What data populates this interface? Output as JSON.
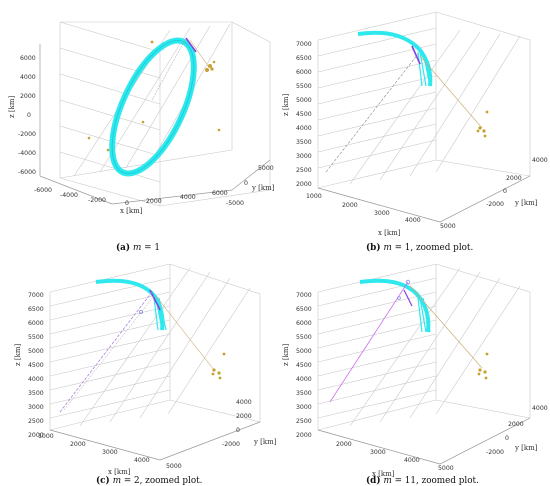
{
  "figure": {
    "panels": [
      {
        "caption_tag": "(a)",
        "caption_var": "m",
        "caption_rest": " = 1",
        "z_ticks": [
          "6000",
          "4000",
          "2000",
          "0",
          "-2000",
          "-4000",
          "-6000"
        ],
        "x_ticks": [
          "-6000",
          "-4000",
          "-2000",
          "0",
          "2000",
          "4000",
          "6000"
        ],
        "y_ticks": [
          "5000",
          "0",
          "-5000"
        ],
        "xlabel": "x [km]",
        "ylabel": "y [km]",
        "zlabel": "z [km]"
      },
      {
        "caption_tag": "(b)",
        "caption_var": "m",
        "caption_rest": " = 1, zoomed plot.",
        "z_ticks": [
          "7000",
          "6500",
          "6000",
          "5500",
          "5000",
          "4500",
          "4000",
          "3500",
          "3000",
          "2500",
          "2000"
        ],
        "x_ticks": [
          "1000",
          "2000",
          "3000",
          "4000",
          "5000"
        ],
        "y_ticks": [
          "4000",
          "2000",
          "0",
          "-2000"
        ],
        "xlabel": "x [km]",
        "ylabel": "y [km]",
        "zlabel": "z [km]"
      },
      {
        "caption_tag": "(c)",
        "caption_var": "m",
        "caption_rest": " = 2, zoomed plot.",
        "z_ticks": [
          "7000",
          "6500",
          "6000",
          "5500",
          "5000",
          "4500",
          "4000",
          "3500",
          "3000",
          "2500",
          "2000"
        ],
        "x_ticks": [
          "1000",
          "2000",
          "3000",
          "4000",
          "5000"
        ],
        "y_ticks": [
          "4000",
          "2000",
          "0",
          "-2000"
        ],
        "xlabel": "x [km]",
        "ylabel": "y [km]",
        "zlabel": "z [km]"
      },
      {
        "caption_tag": "(d)",
        "caption_var": "m",
        "caption_rest": " = 11, zoomed plot.",
        "z_ticks": [
          "7000",
          "6500",
          "6000",
          "5500",
          "5000",
          "4500",
          "4000",
          "3500",
          "3000",
          "2500",
          "2000"
        ],
        "x_ticks": [
          "2000",
          "3000",
          "4000",
          "5000"
        ],
        "y_ticks": [
          "4000",
          "2000",
          "0",
          "-2000"
        ],
        "xlabel": "x [km]",
        "ylabel": "y [km]",
        "zlabel": "z [km]"
      }
    ],
    "colors": {
      "orbit": "#2ee8ee",
      "trajectory": "#8a3fe0",
      "ground_stations": "#c8a030",
      "guide_line": "#c9a86a",
      "link_line": "#b080e0"
    }
  }
}
